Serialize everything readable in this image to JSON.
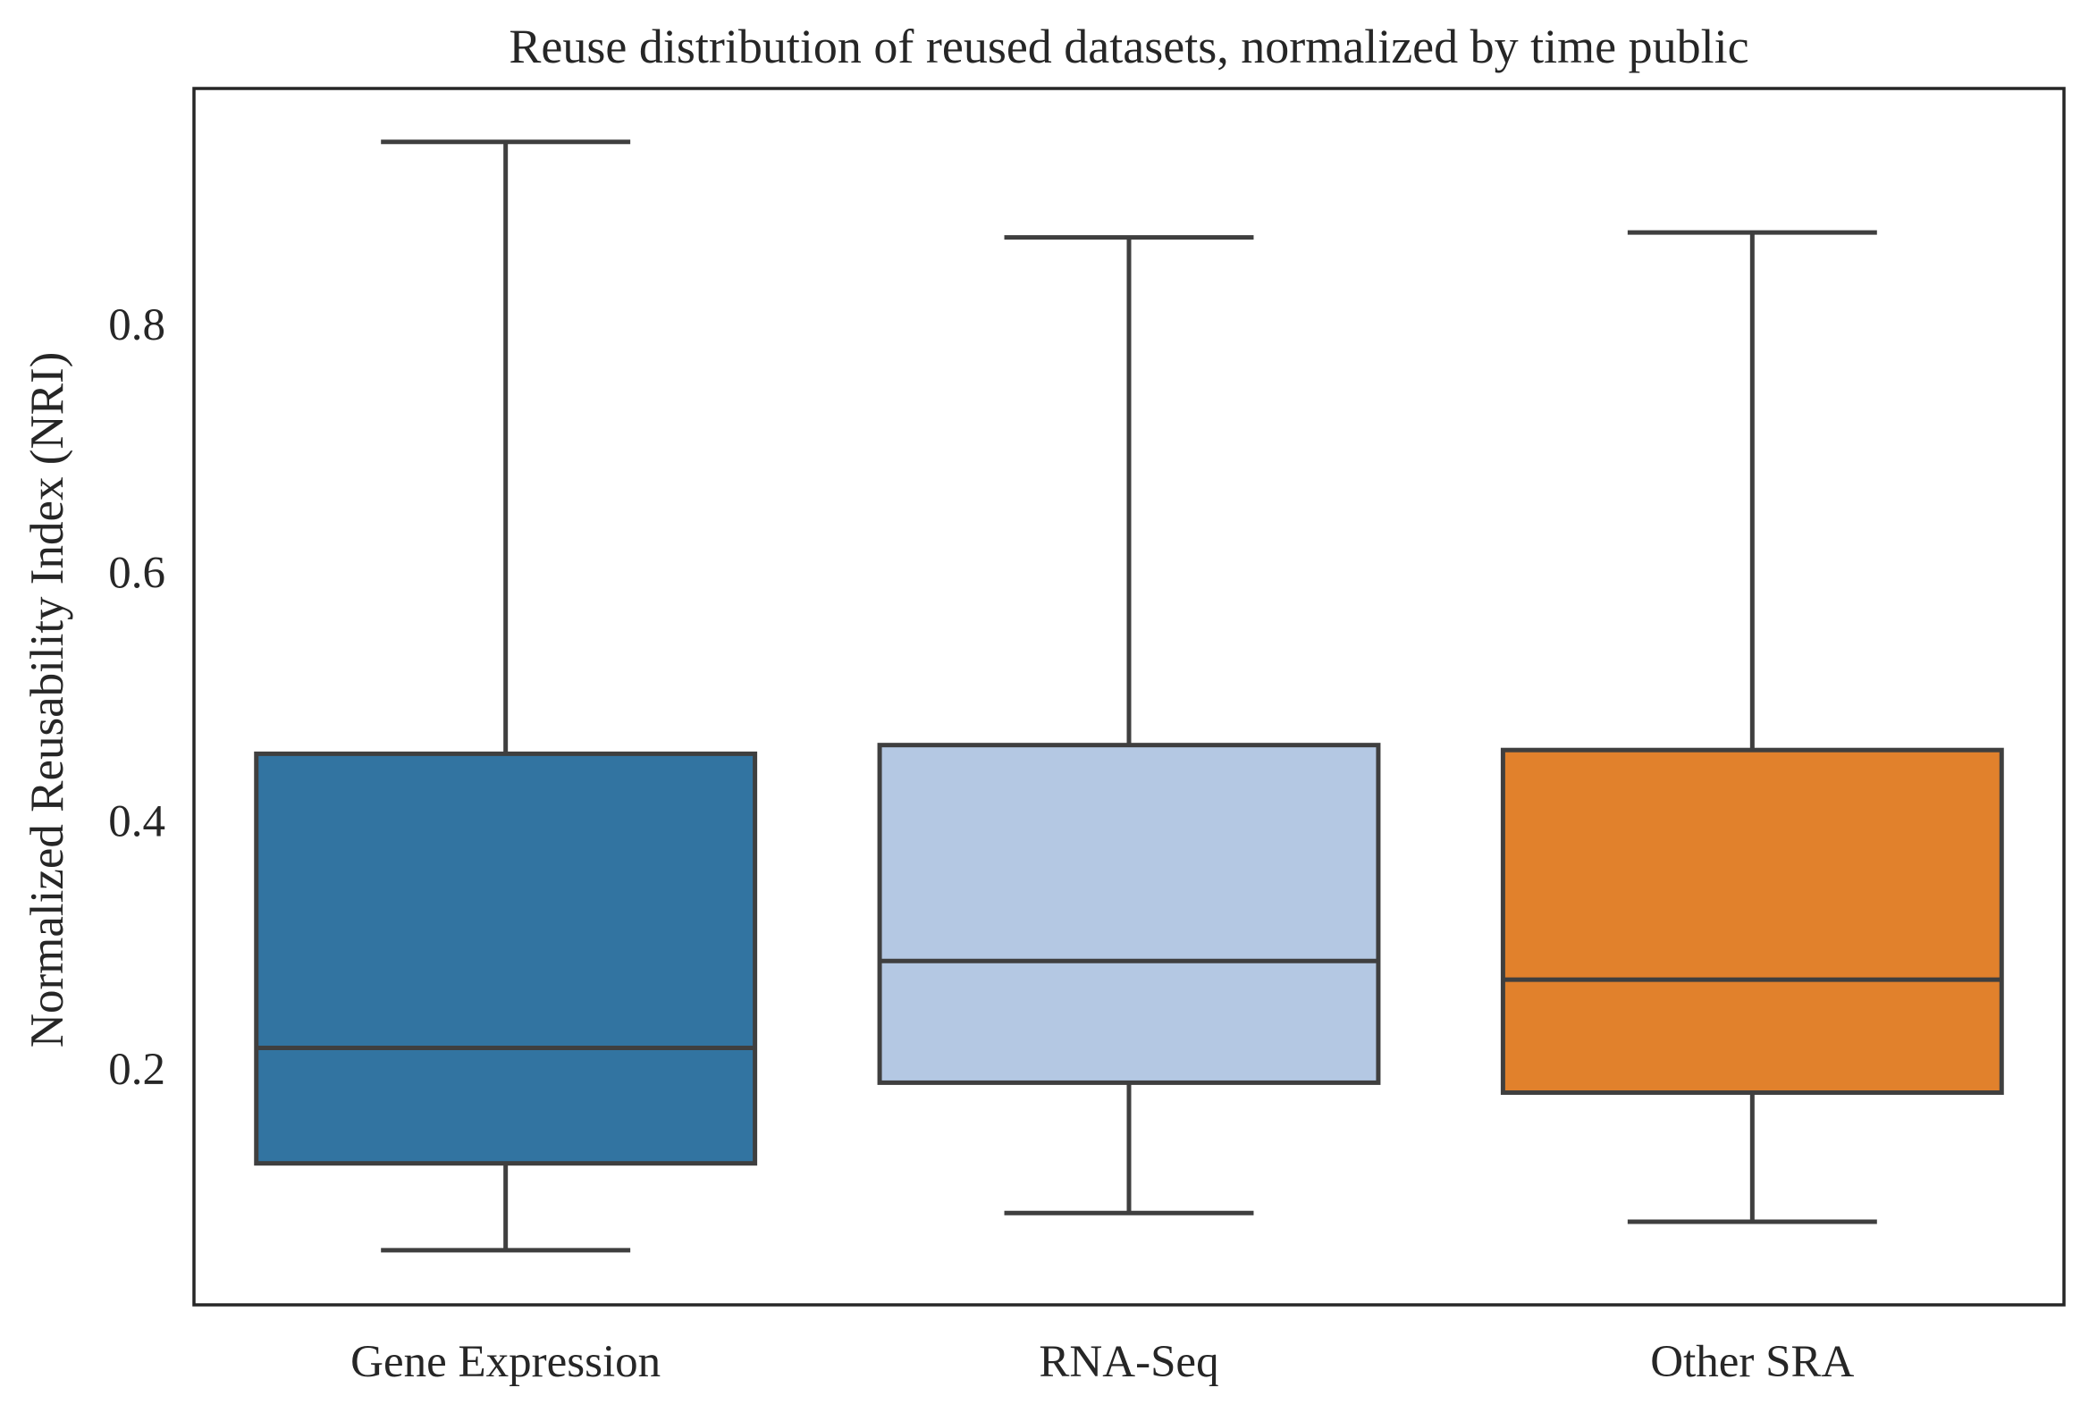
{
  "chart_data": {
    "type": "box",
    "title": "Reuse distribution of reused datasets, normalized by time public",
    "xlabel": "",
    "ylabel": "Normalized Reusability Index (NRI)",
    "ylim": [
      0.01,
      0.99
    ],
    "yticks": [
      0.2,
      0.4,
      0.6,
      0.8
    ],
    "ytick_labels": [
      "0.2",
      "0.4",
      "0.6",
      "0.8"
    ],
    "grid": false,
    "categories": [
      "Gene Expression",
      "RNA-Seq",
      "Other SRA"
    ],
    "boxes": [
      {
        "category": "Gene Expression",
        "whislo": 0.054,
        "q1": 0.124,
        "median": 0.217,
        "q3": 0.454,
        "whishi": 0.947,
        "color": "#3274a1"
      },
      {
        "category": "RNA-Seq",
        "whislo": 0.084,
        "q1": 0.189,
        "median": 0.287,
        "q3": 0.461,
        "whishi": 0.87,
        "color": "#b4c8e3"
      },
      {
        "category": "Other SRA",
        "whislo": 0.077,
        "q1": 0.181,
        "median": 0.272,
        "q3": 0.457,
        "whishi": 0.874,
        "color": "#e1812c"
      }
    ]
  }
}
